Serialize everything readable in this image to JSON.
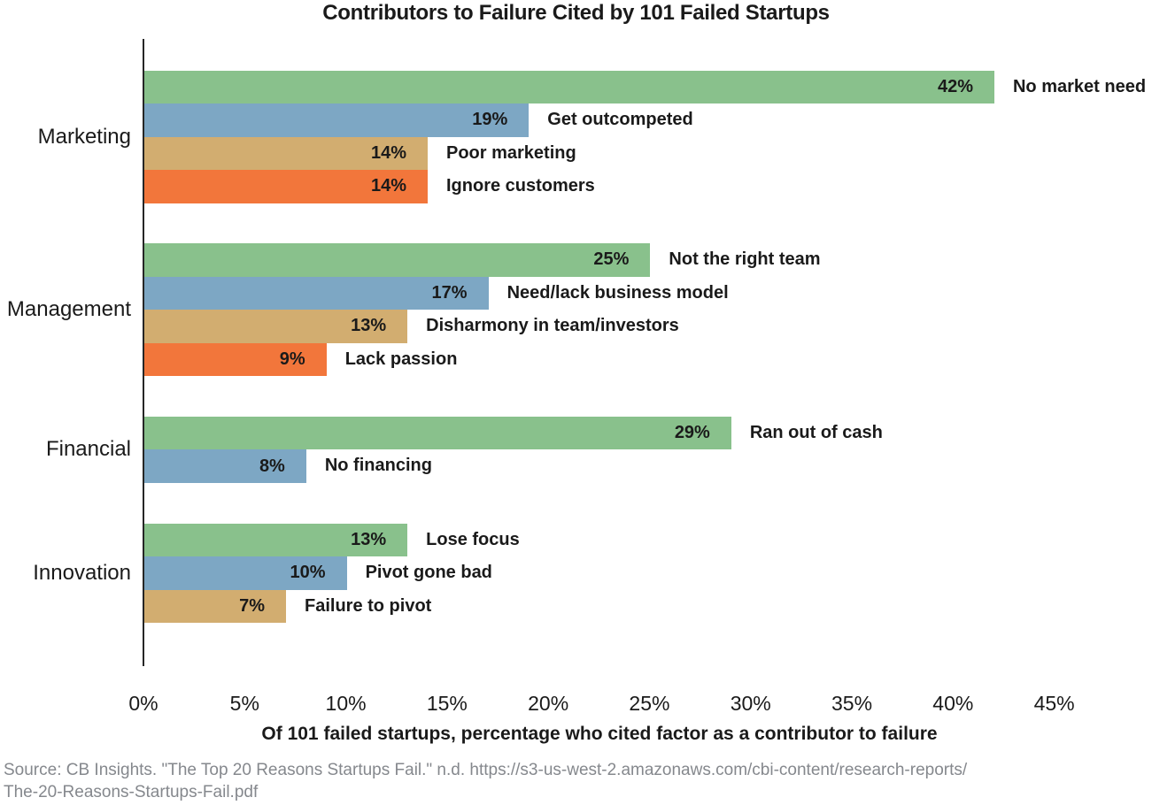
{
  "chart_data": {
    "type": "bar",
    "orientation": "horizontal",
    "title": "Contributors to Failure Cited by 101 Failed Startups",
    "xlabel": "Of 101 failed startups, percentage who cited factor as a contributor to failure",
    "ylabel": "",
    "xlim": [
      0,
      45
    ],
    "x_ticks": [
      "0%",
      "5%",
      "10%",
      "15%",
      "20%",
      "25%",
      "30%",
      "35%",
      "40%",
      "45%"
    ],
    "grid": false,
    "legend": "none",
    "palette": [
      "#89C18C",
      "#7DA7C4",
      "#D2AD70",
      "#F2763B"
    ],
    "groups": [
      {
        "category": "Marketing",
        "bars": [
          {
            "label": "No market need",
            "value": 42,
            "value_label": "42%"
          },
          {
            "label": "Get outcompeted",
            "value": 19,
            "value_label": "19%"
          },
          {
            "label": "Poor marketing",
            "value": 14,
            "value_label": "14%"
          },
          {
            "label": "Ignore customers",
            "value": 14,
            "value_label": "14%"
          }
        ]
      },
      {
        "category": "Management",
        "bars": [
          {
            "label": "Not the right team",
            "value": 25,
            "value_label": "25%"
          },
          {
            "label": "Need/lack business model",
            "value": 17,
            "value_label": "17%"
          },
          {
            "label": "Disharmony in team/investors",
            "value": 13,
            "value_label": "13%"
          },
          {
            "label": "Lack passion",
            "value": 9,
            "value_label": "9%"
          }
        ]
      },
      {
        "category": "Financial",
        "bars": [
          {
            "label": "Ran out of cash",
            "value": 29,
            "value_label": "29%"
          },
          {
            "label": "No financing",
            "value": 8,
            "value_label": "8%"
          }
        ]
      },
      {
        "category": "Innovation",
        "bars": [
          {
            "label": "Lose focus",
            "value": 13,
            "value_label": "13%"
          },
          {
            "label": "Pivot gone bad",
            "value": 10,
            "value_label": "10%"
          },
          {
            "label": "Failure to pivot",
            "value": 7,
            "value_label": "7%"
          }
        ]
      }
    ],
    "colors": {
      "text": "#1a1a1a",
      "axis": "#262626",
      "source_text": "#85888D"
    }
  },
  "source": {
    "line1": "Source: CB Insights. \"The Top 20 Reasons Startups Fail.\" n.d. https://s3-us-west-2.amazonaws.com/cbi-content/research-reports/",
    "line2": "The-20-Reasons-Startups-Fail.pdf"
  }
}
